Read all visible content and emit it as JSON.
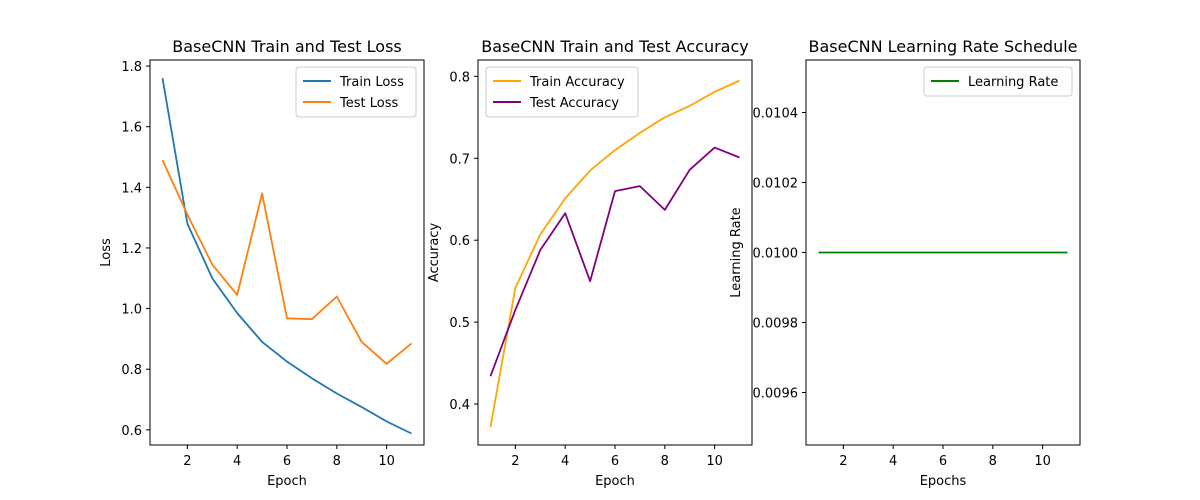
{
  "chart_data": [
    {
      "type": "line",
      "title": "BaseCNN Train and Test Loss",
      "xlabel": "Epoch",
      "ylabel": "Loss",
      "xlim": [
        0.5,
        11.5
      ],
      "ylim": [
        0.55,
        1.82
      ],
      "xticks": [
        2,
        4,
        6,
        8,
        10
      ],
      "yticks": [
        0.6,
        0.8,
        1.0,
        1.2,
        1.4,
        1.6,
        1.8
      ],
      "ytick_labels": [
        "0.6",
        "0.8",
        "1.0",
        "1.2",
        "1.4",
        "1.6",
        "1.8"
      ],
      "legend_position": "top-right",
      "grid": false,
      "x": [
        1,
        2,
        3,
        4,
        5,
        6,
        7,
        8,
        9,
        10,
        11
      ],
      "series": [
        {
          "name": "Train Loss",
          "color": "#1f77b4",
          "values": [
            1.76,
            1.28,
            1.1,
            0.985,
            0.89,
            0.825,
            0.77,
            0.72,
            0.675,
            0.628,
            0.588
          ]
        },
        {
          "name": "Test Loss",
          "color": "#ff7f0e",
          "values": [
            1.49,
            1.31,
            1.145,
            1.045,
            1.38,
            0.968,
            0.965,
            1.04,
            0.89,
            0.818,
            0.885
          ]
        }
      ]
    },
    {
      "type": "line",
      "title": "BaseCNN Train and Test Accuracy",
      "xlabel": "Epoch",
      "ylabel": "Accuracy",
      "xlim": [
        0.5,
        11.5
      ],
      "ylim": [
        0.35,
        0.82
      ],
      "xticks": [
        2,
        4,
        6,
        8,
        10
      ],
      "yticks": [
        0.4,
        0.5,
        0.6,
        0.7,
        0.8
      ],
      "ytick_labels": [
        "0.4",
        "0.5",
        "0.6",
        "0.7",
        "0.8"
      ],
      "legend_position": "top-left",
      "grid": false,
      "x": [
        1,
        2,
        3,
        4,
        5,
        6,
        7,
        8,
        9,
        10,
        11
      ],
      "series": [
        {
          "name": "Train Accuracy",
          "color": "#ffa500",
          "values": [
            0.372,
            0.542,
            0.607,
            0.651,
            0.685,
            0.71,
            0.731,
            0.75,
            0.764,
            0.781,
            0.795
          ]
        },
        {
          "name": "Test Accuracy",
          "color": "#800080",
          "values": [
            0.434,
            0.515,
            0.588,
            0.633,
            0.55,
            0.66,
            0.666,
            0.637,
            0.686,
            0.713,
            0.701
          ]
        }
      ]
    },
    {
      "type": "line",
      "title": "BaseCNN Learning Rate Schedule",
      "xlabel": "Epochs",
      "ylabel": "Learning Rate",
      "xlim": [
        0.5,
        11.5
      ],
      "ylim": [
        0.00945,
        0.01055
      ],
      "xticks": [
        2,
        4,
        6,
        8,
        10
      ],
      "yticks": [
        0.0096,
        0.0098,
        0.01,
        0.0102,
        0.0104
      ],
      "ytick_labels": [
        "0.0096",
        "0.0098",
        "0.0100",
        "0.0102",
        "0.0104"
      ],
      "legend_position": "top-right",
      "grid": false,
      "x": [
        1,
        2,
        3,
        4,
        5,
        6,
        7,
        8,
        9,
        10,
        11
      ],
      "series": [
        {
          "name": "Learning Rate",
          "color": "#008000",
          "values": [
            0.01,
            0.01,
            0.01,
            0.01,
            0.01,
            0.01,
            0.01,
            0.01,
            0.01,
            0.01,
            0.01
          ]
        }
      ]
    }
  ]
}
